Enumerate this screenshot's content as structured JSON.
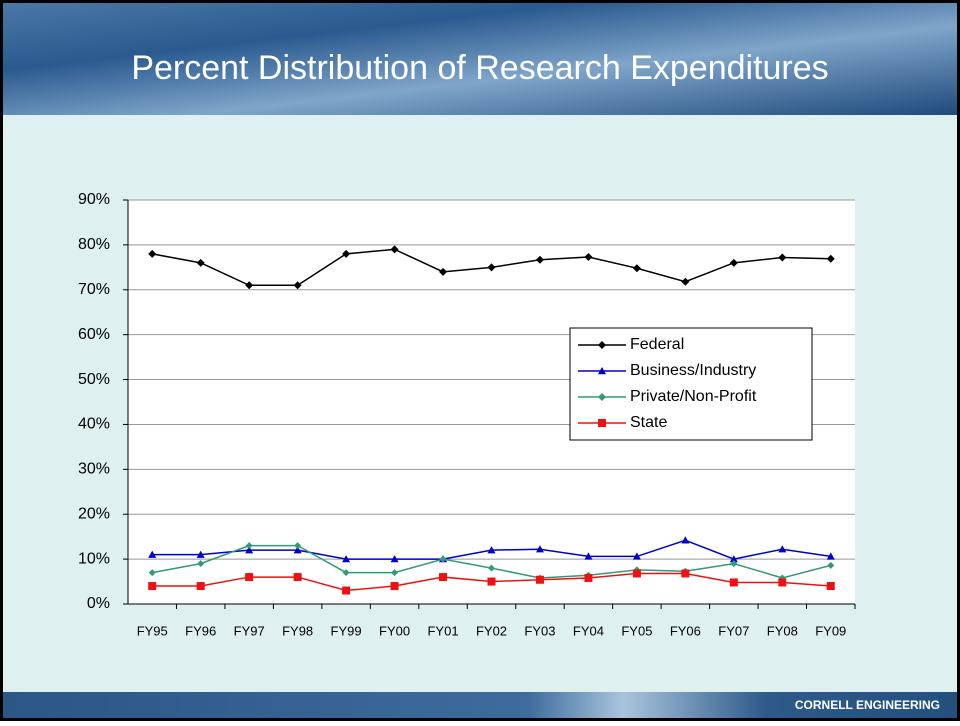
{
  "chart_data": {
    "type": "line",
    "title": "Percent Distribution of Research Expenditures",
    "categories": [
      "FY95",
      "FY96",
      "FY97",
      "FY98",
      "FY99",
      "FY00",
      "FY01",
      "FY02",
      "FY03",
      "FY04",
      "FY05",
      "FY06",
      "FY07",
      "FY08",
      "FY09"
    ],
    "series": [
      {
        "name": "Federal",
        "color": "#000000",
        "marker": "diamond",
        "values": [
          78,
          76,
          71,
          71,
          78,
          79,
          74,
          75,
          76.7,
          77.3,
          74.8,
          71.8,
          76,
          77.2,
          76.9
        ]
      },
      {
        "name": "Business/Industry",
        "color": "#0000cc",
        "marker": "triangle",
        "values": [
          11,
          11,
          12,
          12,
          10,
          10,
          10,
          12,
          12.2,
          10.6,
          10.6,
          14.2,
          10,
          12.2,
          10.6
        ]
      },
      {
        "name": "Private/Non-Profit",
        "color": "#339977",
        "marker": "diamond",
        "values": [
          7,
          9,
          13,
          13,
          7,
          7,
          10,
          8,
          5.8,
          6.4,
          7.6,
          7.3,
          9,
          5.8,
          8.6
        ]
      },
      {
        "name": "State",
        "color": "#ee1111",
        "marker": "square",
        "values": [
          4,
          4,
          6,
          6,
          3,
          4,
          6,
          5,
          5.4,
          5.8,
          6.8,
          6.8,
          4.8,
          4.8,
          4
        ]
      }
    ],
    "ylim": [
      0,
      90
    ],
    "yticks": [
      {
        "value": 0,
        "label": "0%"
      },
      {
        "value": 10,
        "label": "10%"
      },
      {
        "value": 20,
        "label": "20%"
      },
      {
        "value": 30,
        "label": "30%"
      },
      {
        "value": 40,
        "label": "40%"
      },
      {
        "value": 50,
        "label": "50%"
      },
      {
        "value": 60,
        "label": "60%"
      },
      {
        "value": 70,
        "label": "70%"
      },
      {
        "value": 80,
        "label": "80%"
      },
      {
        "value": 90,
        "label": "90%"
      }
    ],
    "grid": true,
    "legend": "right"
  },
  "footer": "CORNELL ENGINEERING"
}
